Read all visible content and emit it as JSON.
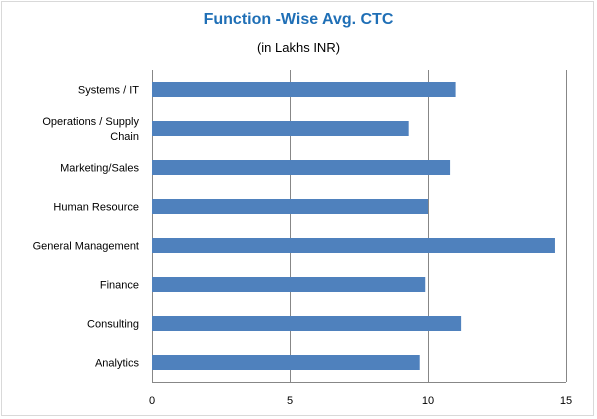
{
  "chart_data": {
    "type": "bar",
    "orientation": "horizontal",
    "title": "Function -Wise Avg. CTC",
    "subtitle": "(in Lakhs  INR)",
    "categories": [
      "Systems / IT",
      "Operations / Supply Chain",
      "Marketing/Sales",
      "Human Resource",
      "General Management",
      "Finance",
      "Consulting",
      "Analytics"
    ],
    "category_lines": [
      [
        "Systems / IT"
      ],
      [
        "Operations / Supply",
        "Chain"
      ],
      [
        "Marketing/Sales"
      ],
      [
        "Human Resource"
      ],
      [
        "General Management"
      ],
      [
        "Finance"
      ],
      [
        "Consulting"
      ],
      [
        "Analytics"
      ]
    ],
    "values": [
      11.0,
      9.3,
      10.8,
      10.0,
      14.6,
      9.9,
      11.2,
      9.7
    ],
    "xlim": [
      0,
      15
    ],
    "xticks": [
      0,
      5,
      10,
      15
    ],
    "xtick_labels": [
      "0",
      "5",
      "10",
      "15"
    ],
    "grid": "vertical",
    "legend": "none",
    "colors": {
      "bar": "#4f81bd",
      "grid": "#878787",
      "title": "#1f6fb6"
    }
  }
}
